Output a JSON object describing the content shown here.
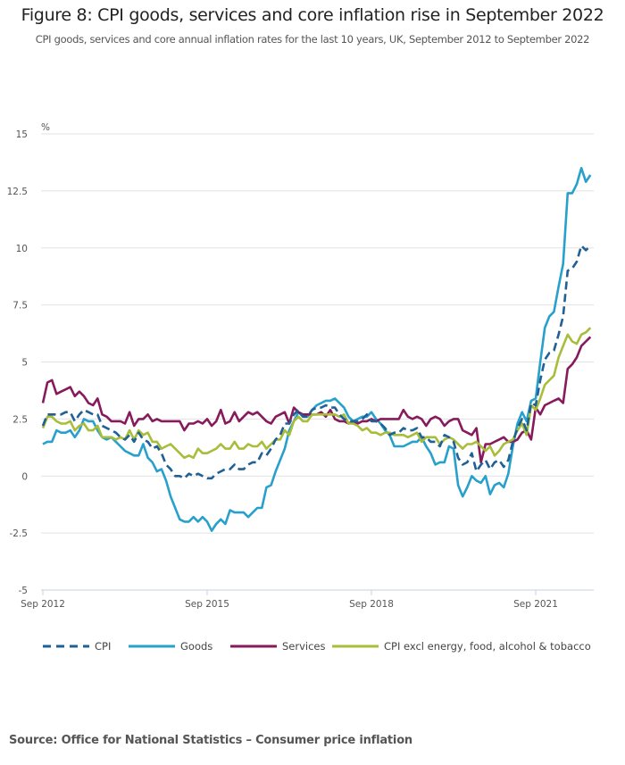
{
  "title": "Figure 8: CPI goods, services and core inflation rise in September 2022",
  "subtitle": "CPI goods, services and core annual inflation rates for the last 10 years, UK, September 2012 to September 2022",
  "source": "Source: Office for National Statistics – Consumer price inflation",
  "chart_data": {
    "type": "line",
    "title": "Figure 8: CPI goods, services and core inflation rise in September 2022",
    "ylabel": "%",
    "xlabel": "",
    "ylim": [
      -5,
      15
    ],
    "yticks": [
      "15",
      "12.5",
      "10",
      "7.5",
      "5",
      "2.5",
      "0",
      "-2.5",
      "-5"
    ],
    "ytick_values": [
      15,
      12.5,
      10,
      7.5,
      5,
      2.5,
      0,
      -2.5,
      -5
    ],
    "xticks": [
      "Sep 2012",
      "Sep 2015",
      "Sep 2018",
      "Sep 2021"
    ],
    "xtick_month_index": [
      0,
      36,
      72,
      108
    ],
    "x_start": "Sep 2012",
    "x_end": "Sep 2022",
    "grid": true,
    "legend_position": "bottom",
    "series": [
      {
        "name": "CPI",
        "color": "#206095",
        "dashed": true,
        "values": [
          2.2,
          2.7,
          2.7,
          2.7,
          2.7,
          2.8,
          2.8,
          2.4,
          2.7,
          2.9,
          2.8,
          2.7,
          2.7,
          2.2,
          2.1,
          2.0,
          1.9,
          1.7,
          1.6,
          1.8,
          1.5,
          1.9,
          1.6,
          1.5,
          1.2,
          1.3,
          1.0,
          0.5,
          0.3,
          0.0,
          0.0,
          -0.1,
          0.1,
          0.0,
          0.1,
          0.0,
          -0.1,
          -0.1,
          0.1,
          0.2,
          0.3,
          0.3,
          0.5,
          0.3,
          0.3,
          0.5,
          0.6,
          0.6,
          1.0,
          0.9,
          1.2,
          1.6,
          1.8,
          2.3,
          2.3,
          2.7,
          2.9,
          2.6,
          2.6,
          2.9,
          3.0,
          3.0,
          3.1,
          3.0,
          3.0,
          2.7,
          2.5,
          2.4,
          2.4,
          2.4,
          2.5,
          2.7,
          2.4,
          2.4,
          2.3,
          2.1,
          1.8,
          1.9,
          1.9,
          2.1,
          2.0,
          2.0,
          2.1,
          1.7,
          1.7,
          1.5,
          1.5,
          1.3,
          1.8,
          1.7,
          1.5,
          0.8,
          0.5,
          0.6,
          1.0,
          0.2,
          0.5,
          0.7,
          0.3,
          0.6,
          0.7,
          0.4,
          0.7,
          1.5,
          2.1,
          2.5,
          2.0,
          3.2,
          3.1,
          4.2,
          5.1,
          5.4,
          5.5,
          6.2,
          7.0,
          9.0,
          9.1,
          9.4,
          10.1,
          9.9,
          10.1
        ]
      },
      {
        "name": "Goods",
        "color": "#27a0cc",
        "dashed": false,
        "values": [
          1.4,
          1.5,
          1.5,
          2.0,
          1.9,
          1.9,
          2.0,
          1.7,
          2.0,
          2.5,
          2.4,
          2.4,
          2.0,
          1.7,
          1.6,
          1.7,
          1.5,
          1.3,
          1.1,
          1.0,
          0.9,
          0.9,
          1.4,
          0.8,
          0.6,
          0.2,
          0.3,
          -0.2,
          -0.9,
          -1.4,
          -1.9,
          -2.0,
          -2.0,
          -1.8,
          -2.0,
          -1.8,
          -2.0,
          -2.4,
          -2.1,
          -1.9,
          -2.1,
          -1.5,
          -1.6,
          -1.6,
          -1.6,
          -1.8,
          -1.6,
          -1.4,
          -1.4,
          -0.5,
          -0.4,
          0.2,
          0.7,
          1.2,
          2.0,
          2.4,
          2.8,
          2.6,
          2.6,
          2.9,
          3.1,
          3.2,
          3.3,
          3.3,
          3.4,
          3.2,
          3.0,
          2.6,
          2.4,
          2.5,
          2.6,
          2.6,
          2.8,
          2.5,
          2.3,
          2.0,
          1.8,
          1.3,
          1.3,
          1.3,
          1.4,
          1.5,
          1.5,
          1.7,
          1.3,
          1.0,
          0.5,
          0.6,
          0.6,
          1.3,
          1.2,
          -0.4,
          -0.9,
          -0.5,
          0.0,
          -0.2,
          -0.3,
          0.0,
          -0.8,
          -0.4,
          -0.3,
          -0.5,
          0.1,
          1.3,
          2.3,
          2.8,
          2.4,
          3.3,
          3.4,
          5.0,
          6.5,
          7.0,
          7.2,
          8.3,
          9.3,
          12.4,
          12.4,
          12.8,
          13.5,
          12.9,
          13.2
        ]
      },
      {
        "name": "Services",
        "color": "#871a5b",
        "dashed": false,
        "values": [
          3.2,
          4.1,
          4.2,
          3.6,
          3.7,
          3.8,
          3.9,
          3.5,
          3.7,
          3.5,
          3.2,
          3.1,
          3.4,
          2.7,
          2.6,
          2.4,
          2.4,
          2.4,
          2.3,
          2.8,
          2.2,
          2.5,
          2.5,
          2.7,
          2.4,
          2.5,
          2.4,
          2.4,
          2.4,
          2.4,
          2.4,
          2.0,
          2.3,
          2.3,
          2.4,
          2.3,
          2.5,
          2.2,
          2.4,
          2.9,
          2.3,
          2.4,
          2.8,
          2.4,
          2.6,
          2.8,
          2.7,
          2.8,
          2.6,
          2.4,
          2.3,
          2.6,
          2.7,
          2.8,
          2.3,
          3.0,
          2.8,
          2.7,
          2.7,
          2.7,
          2.7,
          2.8,
          2.6,
          2.9,
          2.5,
          2.4,
          2.4,
          2.3,
          2.4,
          2.3,
          2.4,
          2.4,
          2.5,
          2.4,
          2.5,
          2.5,
          2.5,
          2.5,
          2.5,
          2.9,
          2.6,
          2.5,
          2.6,
          2.5,
          2.2,
          2.5,
          2.6,
          2.5,
          2.2,
          2.4,
          2.5,
          2.5,
          2.0,
          1.9,
          1.8,
          2.1,
          0.6,
          1.4,
          1.4,
          1.5,
          1.6,
          1.7,
          1.5,
          1.5,
          1.6,
          1.9,
          2.0,
          1.6,
          3.0,
          2.7,
          3.1,
          3.2,
          3.3,
          3.4,
          3.2,
          4.7,
          4.9,
          5.2,
          5.7,
          5.9,
          6.1
        ]
      },
      {
        "name": "CPI excl energy, food, alcohol & tobacco",
        "color": "#a8bd3a",
        "dashed": false,
        "values": [
          2.1,
          2.6,
          2.6,
          2.4,
          2.3,
          2.3,
          2.4,
          2.0,
          2.2,
          2.3,
          2.0,
          2.0,
          2.2,
          1.7,
          1.7,
          1.7,
          1.6,
          1.7,
          1.6,
          2.0,
          1.6,
          2.0,
          1.8,
          1.9,
          1.5,
          1.5,
          1.2,
          1.3,
          1.4,
          1.2,
          1.0,
          0.8,
          0.9,
          0.8,
          1.2,
          1.0,
          1.0,
          1.1,
          1.2,
          1.4,
          1.2,
          1.2,
          1.5,
          1.2,
          1.2,
          1.4,
          1.3,
          1.3,
          1.5,
          1.2,
          1.4,
          1.6,
          1.6,
          2.0,
          1.8,
          2.4,
          2.6,
          2.4,
          2.4,
          2.7,
          2.7,
          2.7,
          2.7,
          2.7,
          2.7,
          2.6,
          2.7,
          2.3,
          2.3,
          2.2,
          2.0,
          2.1,
          1.9,
          1.9,
          1.8,
          1.9,
          1.9,
          1.8,
          1.8,
          1.8,
          1.7,
          1.8,
          1.9,
          1.5,
          1.7,
          1.7,
          1.7,
          1.4,
          1.6,
          1.7,
          1.6,
          1.4,
          1.2,
          1.4,
          1.4,
          1.5,
          1.3,
          1.1,
          1.3,
          0.9,
          1.1,
          1.4,
          1.5,
          1.6,
          2.0,
          2.3,
          1.8,
          3.1,
          2.9,
          3.4,
          4.0,
          4.2,
          4.4,
          5.2,
          5.7,
          6.2,
          5.9,
          5.8,
          6.2,
          6.3,
          6.5
        ]
      }
    ]
  }
}
